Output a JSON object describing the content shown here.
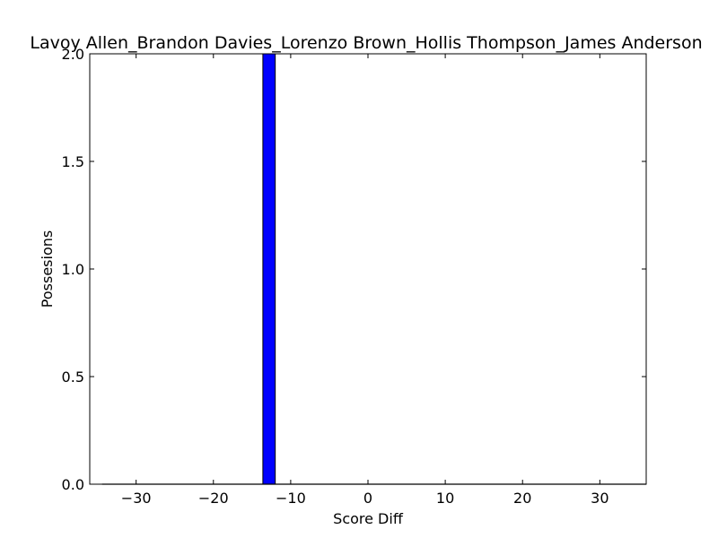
{
  "chart_data": {
    "type": "bar",
    "title": "Lavoy Allen_Brandon Davies_Lorenzo Brown_Hollis Thompson_James Anderson",
    "xlabel": "Score Diff",
    "ylabel": "Possesions",
    "xlim": [
      -36,
      36
    ],
    "ylim": [
      0,
      2
    ],
    "xticks": [
      -30,
      -20,
      -10,
      0,
      10,
      20,
      30
    ],
    "xtick_labels": [
      "−30",
      "−20",
      "−10",
      "0",
      "10",
      "20",
      "30"
    ],
    "yticks": [
      0,
      0.5,
      1,
      1.5,
      2
    ],
    "ytick_labels": [
      "0.0",
      "0.5",
      "1.0",
      "1.5",
      "2.0"
    ],
    "bin_width": 1.6,
    "bins": [
      {
        "x_start": -13.6,
        "x_end": -12.0,
        "value": 2
      }
    ],
    "bar_color": "#0000ff",
    "grid": false,
    "legend": "none"
  }
}
